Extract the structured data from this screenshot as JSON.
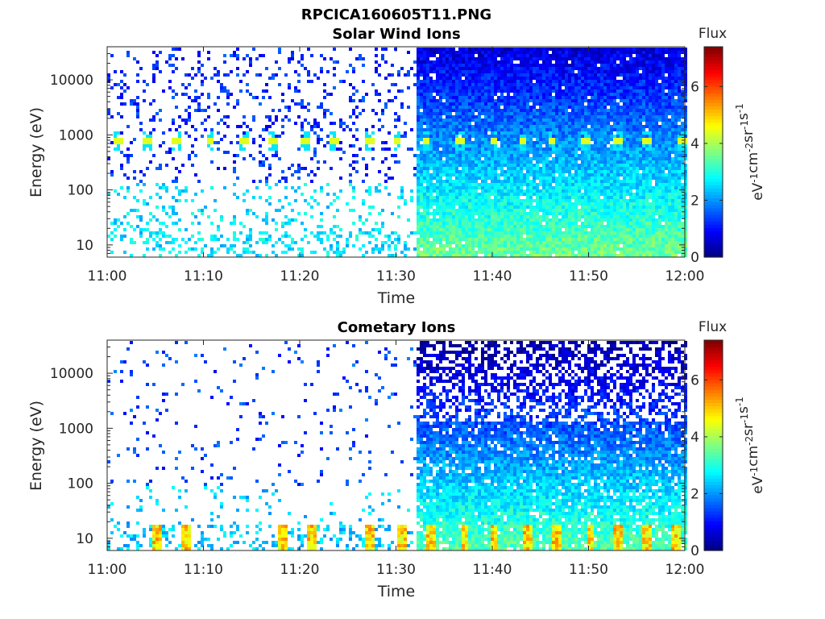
{
  "figure": {
    "title": "RPCICA160605T11.PNG"
  },
  "colors": {
    "colormap": "jet",
    "background": "#ffffff",
    "axis": "#262626"
  },
  "chart_data": [
    {
      "type": "heatmap",
      "title": "Solar Wind Ions",
      "xlabel": "Time",
      "ylabel": "Energy (eV)",
      "y_scale": "log",
      "ylim": [
        6,
        40000
      ],
      "xlim": [
        "11:00",
        "12:00"
      ],
      "x_ticks": [
        "11:00",
        "11:10",
        "11:20",
        "11:30",
        "11:40",
        "11:50",
        "12:00"
      ],
      "y_ticks": [
        "10",
        "100",
        "1000",
        "10000"
      ],
      "y_tick_values": [
        10,
        100,
        1000,
        10000
      ],
      "colorbar": {
        "title": "Flux",
        "label": "eV-1cm-2sr-1s-1",
        "range": [
          0,
          7.4
        ],
        "ticks": [
          "0",
          "2",
          "4",
          "6"
        ],
        "tick_values": [
          0,
          2,
          4,
          6
        ]
      },
      "features": {
        "data_gap_start": "11:32",
        "sweep_peak_energy_eV": 750,
        "sweep_peak_times": [
          "11:01",
          "11:04",
          "11:07",
          "11:10.5",
          "11:14",
          "11:17",
          "11:20.5",
          "11:23.5",
          "11:27",
          "11:30",
          "11:33",
          "11:36.5",
          "11:40",
          "11:43",
          "11:46",
          "11:49.5",
          "11:53",
          "11:56",
          "11:59.5"
        ],
        "sparse_region": [
          "11:00",
          "11:32"
        ],
        "dense_region": [
          "11:32",
          "12:00"
        ]
      }
    },
    {
      "type": "heatmap",
      "title": "Cometary Ions",
      "xlabel": "Time",
      "ylabel": "Energy (eV)",
      "y_scale": "log",
      "ylim": [
        6,
        40000
      ],
      "xlim": [
        "11:00",
        "12:00"
      ],
      "x_ticks": [
        "11:00",
        "11:10",
        "11:20",
        "11:30",
        "11:40",
        "11:50",
        "12:00"
      ],
      "y_ticks": [
        "10",
        "100",
        "1000",
        "10000"
      ],
      "y_tick_values": [
        10,
        100,
        1000,
        10000
      ],
      "colorbar": {
        "title": "Flux",
        "label": "eV-1cm-2sr-1s-1",
        "range": [
          0,
          7.4
        ],
        "ticks": [
          "0",
          "2",
          "4",
          "6"
        ],
        "tick_values": [
          0,
          2,
          4,
          6
        ]
      },
      "features": {
        "data_gap_start": "11:32",
        "low_energy_peak_times": [
          "11:05",
          "11:08",
          "11:18",
          "11:21",
          "11:27",
          "11:30.5",
          "11:33.5",
          "11:37",
          "11:40",
          "11:43.5",
          "11:46.5",
          "11:50",
          "11:53",
          "11:56",
          "11:59"
        ],
        "sparse_region": [
          "11:00",
          "11:32"
        ],
        "dense_region": [
          "11:32",
          "12:00"
        ]
      }
    }
  ]
}
